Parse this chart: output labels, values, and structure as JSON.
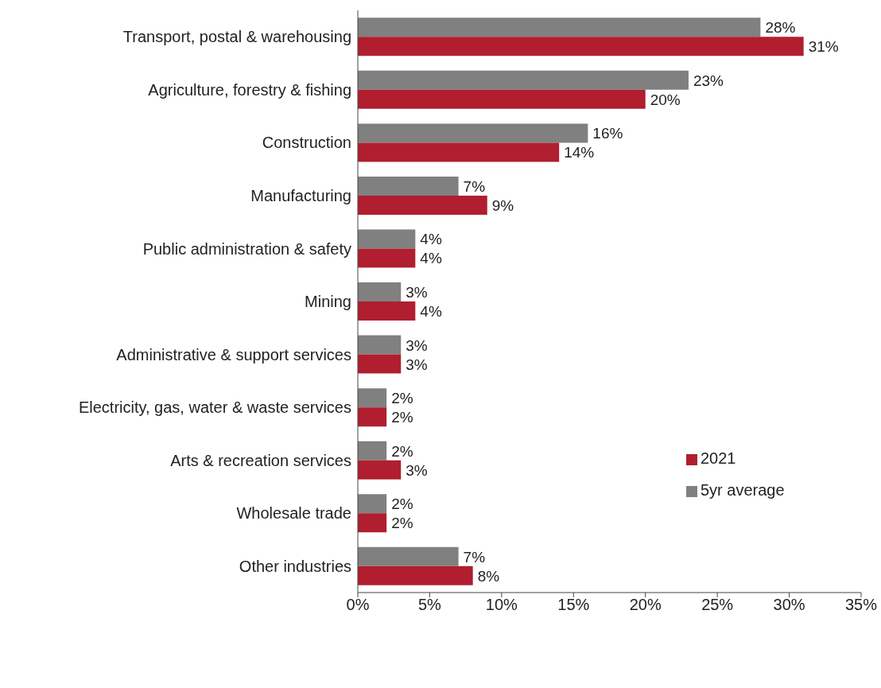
{
  "chart_data": {
    "type": "bar",
    "orientation": "horizontal",
    "categories": [
      "Transport, postal & warehousing",
      "Agriculture, forestry & fishing",
      "Construction",
      "Manufacturing",
      "Public administration & safety",
      "Mining",
      "Administrative & support services",
      "Electricity, gas, water & waste services",
      "Arts & recreation services",
      "Wholesale trade",
      "Other industries"
    ],
    "series": [
      {
        "name": "5yr average",
        "color": "#808080",
        "values": [
          28,
          23,
          16,
          7,
          4,
          3,
          3,
          2,
          2,
          2,
          7
        ],
        "value_labels": [
          "28%",
          "23%",
          "16%",
          "7%",
          "4%",
          "3%",
          "3%",
          "2%",
          "2%",
          "2%",
          "7%"
        ]
      },
      {
        "name": "2021",
        "color": "#b01e2f",
        "values": [
          31,
          20,
          14,
          9,
          4,
          4,
          3,
          2,
          3,
          2,
          8
        ],
        "value_labels": [
          "31%",
          "20%",
          "14%",
          "9%",
          "4%",
          "4%",
          "3%",
          "2%",
          "3%",
          "2%",
          "8%"
        ]
      }
    ],
    "xlim": [
      0,
      35
    ],
    "xticks": [
      {
        "value": 0,
        "label": "0%"
      },
      {
        "value": 5,
        "label": "5%"
      },
      {
        "value": 10,
        "label": "10%"
      },
      {
        "value": 15,
        "label": "15%"
      },
      {
        "value": 20,
        "label": "20%"
      },
      {
        "value": 25,
        "label": "25%"
      },
      {
        "value": 30,
        "label": "30%"
      },
      {
        "value": 35,
        "label": "35%"
      }
    ],
    "grid": false,
    "legend": "right"
  }
}
